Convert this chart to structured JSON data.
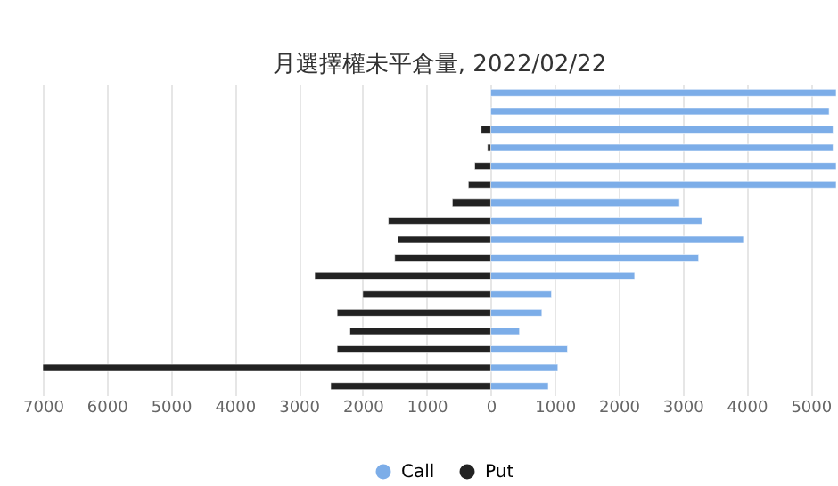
{
  "chart_data": {
    "type": "bar",
    "orientation": "horizontal",
    "title": "月選擇權未平倉量, 2022/02/22",
    "stacked": true,
    "categories": [
      null,
      null,
      null,
      null,
      null,
      null,
      null,
      null,
      null,
      null,
      null,
      null,
      null,
      null,
      null,
      null,
      null
    ],
    "series": [
      {
        "name": "Call",
        "color": "#7cade8",
        "values": [
          5400,
          5290,
          5350,
          5350,
          5400,
          5400,
          2950,
          3300,
          3950,
          3250,
          2250,
          950,
          800,
          450,
          1200,
          1050,
          900
        ]
      },
      {
        "name": "Put",
        "color": "#222222",
        "values": [
          null,
          null,
          -150,
          -50,
          -250,
          -350,
          -600,
          -1600,
          -1450,
          -1500,
          -2750,
          -2000,
          -2400,
          -2200,
          -2400,
          -7000,
          -2500
        ]
      }
    ],
    "xlim": [
      -7000,
      5400
    ],
    "xticks": [
      {
        "value": -7000,
        "label": "7000"
      },
      {
        "value": -6000,
        "label": "6000"
      },
      {
        "value": -5000,
        "label": "5000"
      },
      {
        "value": -4000,
        "label": "4000"
      },
      {
        "value": -3000,
        "label": "3000"
      },
      {
        "value": -2000,
        "label": "2000"
      },
      {
        "value": -1000,
        "label": "1000"
      },
      0,
      1000,
      2000,
      3000,
      4000,
      5000
    ],
    "grid": "x",
    "legend": "bottom",
    "tick_labels": "x"
  }
}
